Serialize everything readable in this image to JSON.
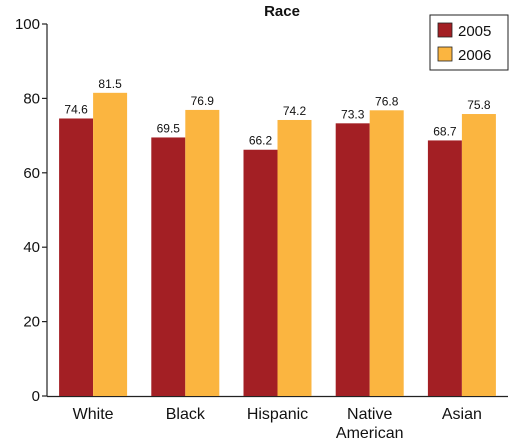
{
  "chart_data": {
    "type": "bar",
    "title": "Race",
    "xlabel": "",
    "ylabel": "",
    "ylim": [
      0,
      100
    ],
    "yticks": [
      "0",
      "20",
      "40",
      "60",
      "80",
      "100"
    ],
    "categories": [
      [
        "White"
      ],
      [
        "Black"
      ],
      [
        "Hispanic"
      ],
      [
        "Native",
        "American"
      ],
      [
        "Asian"
      ]
    ],
    "series": [
      {
        "name": "2005",
        "color": "#a31f24",
        "values": [
          74.6,
          69.5,
          66.2,
          73.3,
          68.7
        ],
        "labels": [
          "74.6",
          "69.5",
          "66.2",
          "73.3",
          "68.7"
        ]
      },
      {
        "name": "2006",
        "color": "#fbb540",
        "values": [
          81.5,
          76.9,
          74.2,
          76.8,
          75.8
        ],
        "labels": [
          "81.5",
          "76.9",
          "74.2",
          "76.8",
          "75.8"
        ]
      }
    ],
    "legend": "top-right",
    "grid": false
  }
}
